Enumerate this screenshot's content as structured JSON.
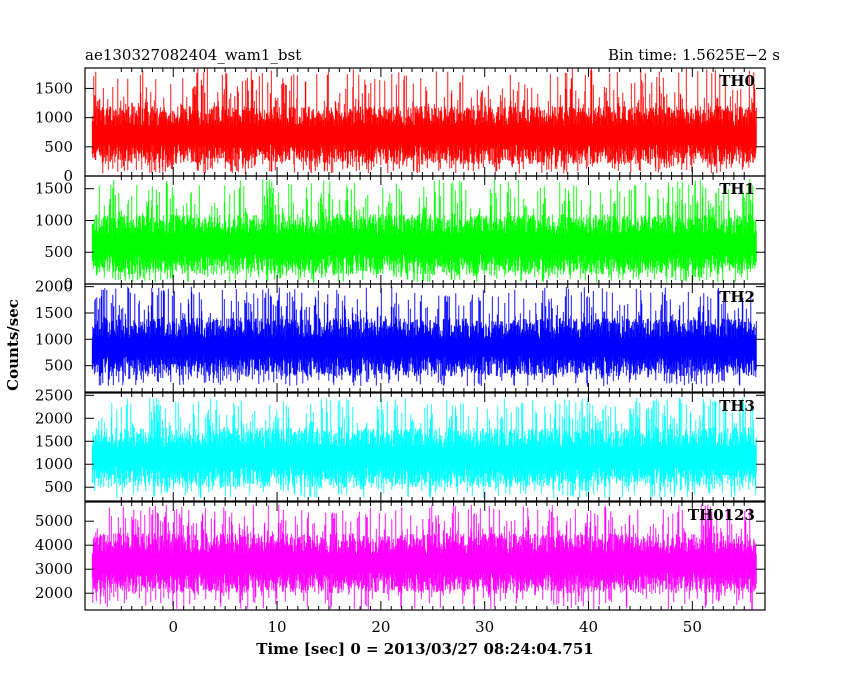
{
  "header": {
    "left": "ae130327082404_wam1_bst",
    "right": "Bin time: 1.5625E−2 s"
  },
  "chart_data": {
    "type": "line",
    "xlabel": "Time [sec] 0 = 2013/03/27 08:24:04.751",
    "ylabel": "Counts/sec",
    "xlim": [
      -8.5,
      57
    ],
    "x_data_range": [
      -7.8,
      56.2
    ],
    "bin_time_s": 0.015625,
    "x_ticks": [
      0,
      10,
      20,
      30,
      40,
      50
    ],
    "panels": [
      {
        "name": "TH0",
        "color": "#ff0000",
        "ylim": [
          0,
          1850
        ],
        "y_ticks": [
          0,
          500,
          1000,
          1500
        ],
        "typical_range": [
          200,
          1200
        ],
        "extreme_range": [
          40,
          1850
        ]
      },
      {
        "name": "TH1",
        "color": "#00ff00",
        "ylim": [
          0,
          1700
        ],
        "y_ticks": [
          0,
          500,
          1000,
          1500
        ],
        "typical_range": [
          150,
          1100
        ],
        "extreme_range": [
          20,
          1650
        ]
      },
      {
        "name": "TH2",
        "color": "#0000ff",
        "ylim": [
          0,
          2050
        ],
        "y_ticks": [
          500,
          1000,
          1500,
          2000
        ],
        "typical_range": [
          300,
          1400
        ],
        "extreme_range": [
          100,
          2000
        ]
      },
      {
        "name": "TH3",
        "color": "#00ffff",
        "ylim": [
          200,
          2550
        ],
        "y_ticks": [
          500,
          1000,
          1500,
          2000,
          2500
        ],
        "typical_range": [
          500,
          1800
        ],
        "extreme_range": [
          250,
          2450
        ]
      },
      {
        "name": "TH0123",
        "color": "#ff00ff",
        "ylim": [
          1300,
          5800
        ],
        "y_ticks": [
          2000,
          3000,
          4000,
          5000
        ],
        "typical_range": [
          2000,
          4500
        ],
        "extreme_range": [
          1300,
          5700
        ]
      }
    ]
  }
}
